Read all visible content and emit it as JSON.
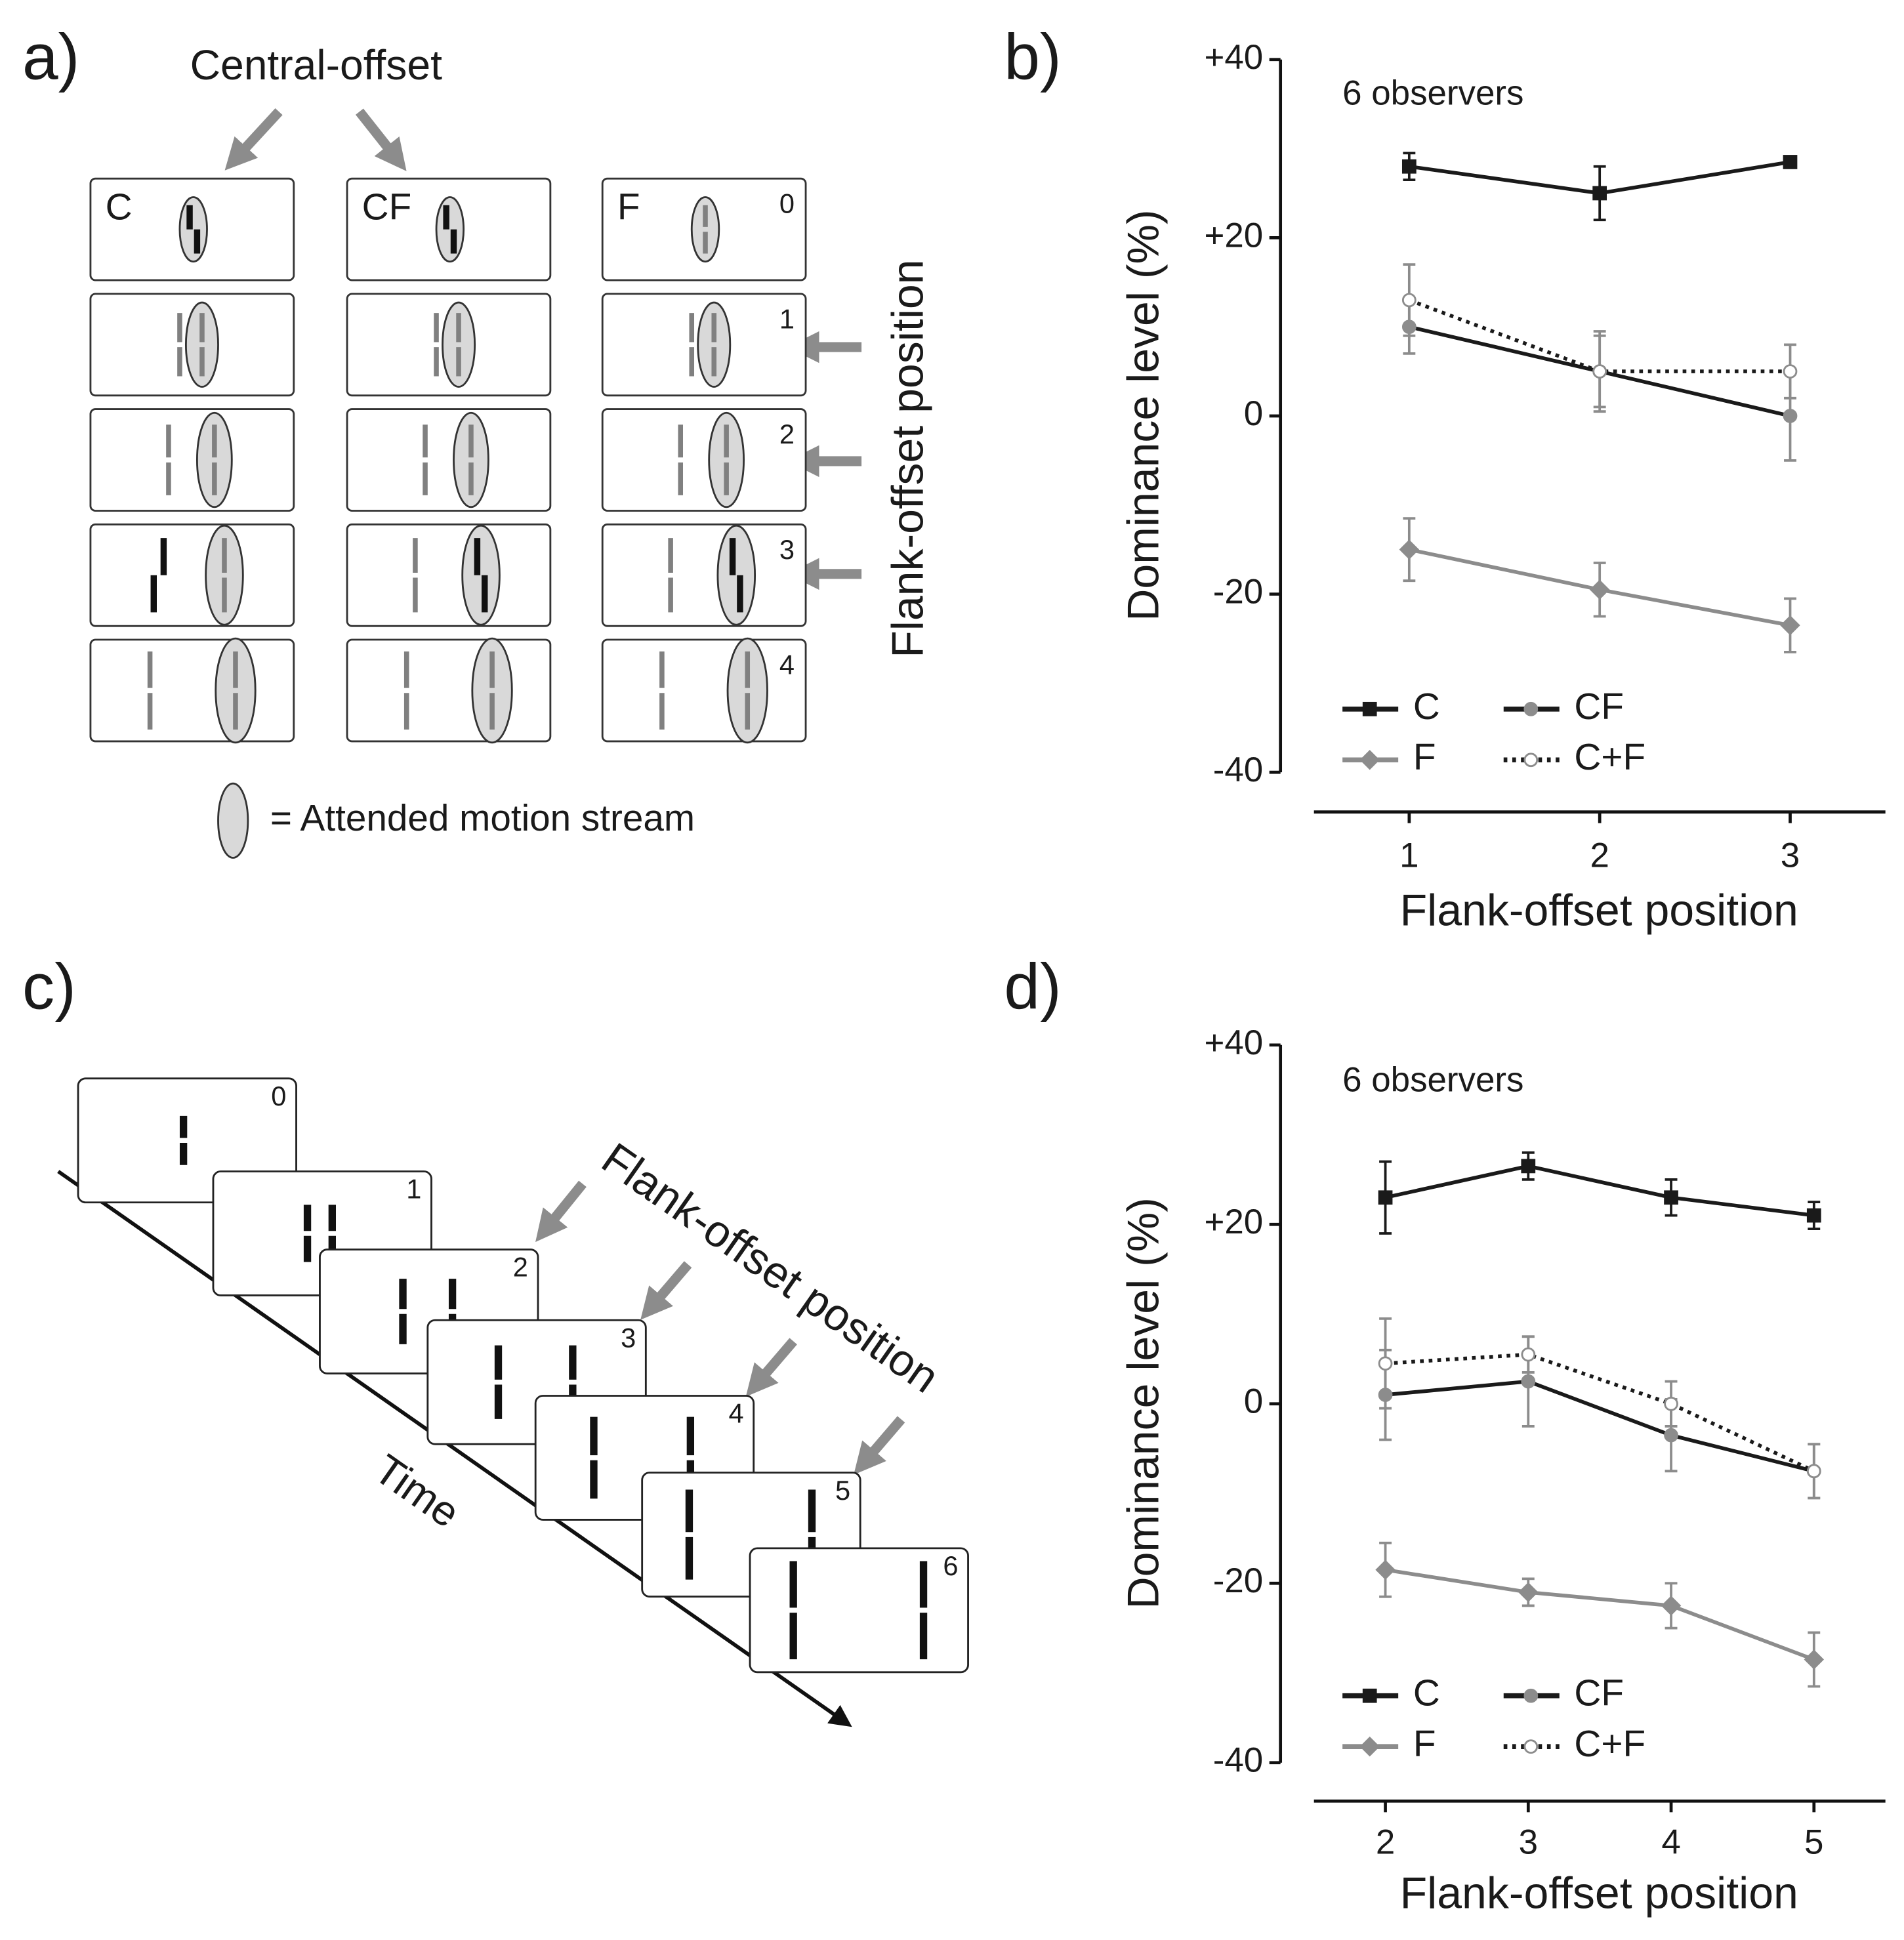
{
  "panel_labels": [
    "a)",
    "b)",
    "c)",
    "d)"
  ],
  "panel_a": {
    "title": "Central-offset",
    "columns": [
      "C",
      "CF",
      "F"
    ],
    "rows": [
      0,
      1,
      2,
      3,
      4
    ],
    "side_label": "Flank-offset position",
    "legend": "= Attended motion stream"
  },
  "panel_c": {
    "frames": [
      0,
      1,
      2,
      3,
      4,
      5,
      6
    ],
    "axis_label": "Time",
    "arrow_label": "Flank-offset position"
  },
  "chart_data": [
    {
      "type": "line",
      "annotation": "6 observers",
      "xlabel": "Flank-offset position",
      "ylabel": "Dominance level (%)",
      "x": [
        1,
        2,
        3
      ],
      "xlim": [
        0.5,
        3.5
      ],
      "xticks": [
        1,
        2,
        3
      ],
      "ylim": [
        -40,
        40
      ],
      "yticks": [
        -40,
        -20,
        0,
        {
          "value": 20,
          "label": "+20"
        },
        {
          "value": 40,
          "label": "+40"
        }
      ],
      "series": [
        {
          "name": "C",
          "color": "#1a1a1a",
          "marker": "square",
          "marker_fill": "#1a1a1a",
          "line_style": "solid",
          "values": [
            28,
            25,
            28.5
          ],
          "errors": [
            1.5,
            3,
            0.5
          ]
        },
        {
          "name": "CF",
          "color": "#1a1a1a",
          "marker": "circle",
          "marker_fill": "#8c8c8c",
          "line_style": "solid",
          "values": [
            10,
            5,
            0
          ],
          "errors": [
            3,
            4,
            5
          ]
        },
        {
          "name": "F",
          "color": "#8c8c8c",
          "marker": "diamond",
          "marker_fill": "#8c8c8c",
          "line_style": "solid",
          "values": [
            -15,
            -19.5,
            -23.5
          ],
          "errors": [
            3.5,
            3,
            3
          ]
        },
        {
          "name": "C+F",
          "color": "#1a1a1a",
          "marker": "circle",
          "marker_fill": "#ffffff",
          "line_style": "dotted",
          "values": [
            13,
            5,
            5
          ],
          "errors": [
            4,
            4.5,
            3
          ]
        }
      ]
    },
    {
      "type": "line",
      "annotation": "6 observers",
      "xlabel": "Flank-offset position",
      "ylabel": "Dominance level (%)",
      "x": [
        2,
        3,
        4,
        5
      ],
      "xlim": [
        1.5,
        5.5
      ],
      "xticks": [
        2,
        3,
        4,
        5
      ],
      "ylim": [
        -40,
        40
      ],
      "yticks": [
        -40,
        -20,
        0,
        {
          "value": 20,
          "label": "+20"
        },
        {
          "value": 40,
          "label": "+40"
        }
      ],
      "series": [
        {
          "name": "C",
          "color": "#1a1a1a",
          "marker": "square",
          "marker_fill": "#1a1a1a",
          "line_style": "solid",
          "values": [
            23,
            26.5,
            23,
            21
          ],
          "errors": [
            4,
            1.5,
            2,
            1.5
          ]
        },
        {
          "name": "CF",
          "color": "#1a1a1a",
          "marker": "circle",
          "marker_fill": "#8c8c8c",
          "line_style": "solid",
          "values": [
            1,
            2.5,
            -3.5,
            -7.5
          ],
          "errors": [
            5,
            5,
            4,
            3
          ]
        },
        {
          "name": "F",
          "color": "#8c8c8c",
          "marker": "diamond",
          "marker_fill": "#8c8c8c",
          "line_style": "solid",
          "values": [
            -18.5,
            -21,
            -22.5,
            -28.5
          ],
          "errors": [
            3,
            1.5,
            2.5,
            3
          ]
        },
        {
          "name": "C+F",
          "color": "#1a1a1a",
          "marker": "circle",
          "marker_fill": "#ffffff",
          "line_style": "dotted",
          "values": [
            4.5,
            5.5,
            0,
            -7.5
          ],
          "errors": [
            5,
            2,
            2.5,
            3
          ]
        }
      ]
    }
  ]
}
